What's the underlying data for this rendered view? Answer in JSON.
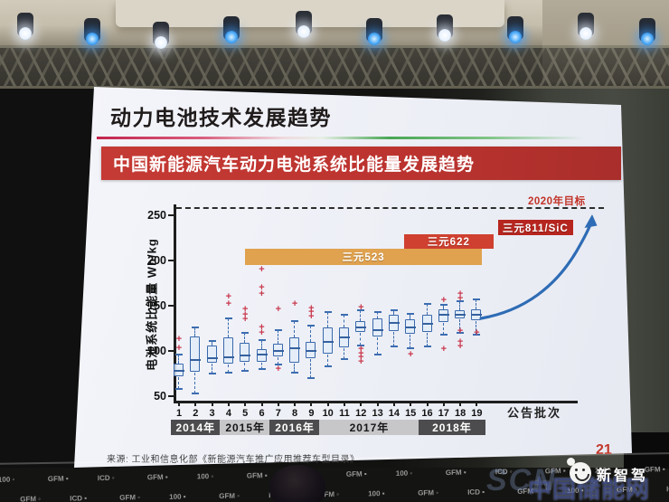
{
  "slide": {
    "title": "动力电池技术发展趋势",
    "banner": "中国新能源汽车动力电池系统比能量发展趋势",
    "source": "来源: 工业和信息化部《新能源汽车推广应用推荐车型目录》",
    "page_number": "21",
    "colors": {
      "banner_red": "#bb332f",
      "title_black": "#201b1b",
      "page_num_red": "#c2382b"
    }
  },
  "chart_data": {
    "type": "boxplot",
    "title": "中国新能源汽车动力电池系统比能量发展趋势",
    "xlabel": "公告批次",
    "ylabel": "电池系统比能量 Wh/kg",
    "ylim": [
      40,
      270
    ],
    "yticks": [
      50,
      100,
      150,
      200,
      250
    ],
    "grid": false,
    "target_line": {
      "value": 259,
      "label": "2020年目标",
      "label_color": "#c23327",
      "style": "dashed"
    },
    "box_color": "#3a69ac",
    "outlier_color": "#c93a4e",
    "batches": [
      {
        "batch": 1,
        "low": 58,
        "q1": 71,
        "median": 78,
        "q3": 86,
        "high": 96,
        "outliers": [
          103,
          113
        ]
      },
      {
        "batch": 2,
        "low": 53,
        "q1": 76,
        "median": 90,
        "q3": 116,
        "high": 126,
        "outliers": []
      },
      {
        "batch": 3,
        "low": 75,
        "q1": 86,
        "median": 92,
        "q3": 106,
        "high": 111,
        "outliers": []
      },
      {
        "batch": 4,
        "low": 76,
        "q1": 85,
        "median": 93,
        "q3": 115,
        "high": 136,
        "outliers": [
          152,
          160
        ]
      },
      {
        "batch": 5,
        "low": 78,
        "q1": 87,
        "median": 95,
        "q3": 109,
        "high": 120,
        "outliers": [
          135,
          140,
          146
        ]
      },
      {
        "batch": 6,
        "low": 80,
        "q1": 87,
        "median": 96,
        "q3": 102,
        "high": 112,
        "outliers": [
          120,
          126,
          163,
          170,
          190
        ]
      },
      {
        "batch": 7,
        "low": 85,
        "q1": 93,
        "median": 100,
        "q3": 108,
        "high": 123,
        "outliers": [
          80,
          146
        ]
      },
      {
        "batch": 8,
        "low": 76,
        "q1": 86,
        "median": 103,
        "q3": 115,
        "high": 133,
        "outliers": [
          152
        ]
      },
      {
        "batch": 9,
        "low": 70,
        "q1": 91,
        "median": 100,
        "q3": 110,
        "high": 128,
        "outliers": [
          138,
          143,
          147
        ]
      },
      {
        "batch": 10,
        "low": 83,
        "q1": 96,
        "median": 110,
        "q3": 126,
        "high": 143,
        "outliers": []
      },
      {
        "batch": 11,
        "low": 91,
        "q1": 103,
        "median": 115,
        "q3": 126,
        "high": 140,
        "outliers": []
      },
      {
        "batch": 12,
        "low": 106,
        "q1": 120,
        "median": 126,
        "q3": 133,
        "high": 145,
        "outliers": [
          88,
          93,
          97,
          102,
          148
        ]
      },
      {
        "batch": 13,
        "low": 96,
        "q1": 115,
        "median": 123,
        "q3": 136,
        "high": 143,
        "outliers": []
      },
      {
        "batch": 14,
        "low": 105,
        "q1": 121,
        "median": 131,
        "q3": 140,
        "high": 145,
        "outliers": []
      },
      {
        "batch": 15,
        "low": 103,
        "q1": 118,
        "median": 126,
        "q3": 135,
        "high": 141,
        "outliers": [
          96
        ]
      },
      {
        "batch": 16,
        "low": 105,
        "q1": 120,
        "median": 130,
        "q3": 140,
        "high": 152,
        "outliers": []
      },
      {
        "batch": 17,
        "low": 118,
        "q1": 131,
        "median": 140,
        "q3": 146,
        "high": 151,
        "outliers": [
          102,
          156
        ]
      },
      {
        "batch": 18,
        "low": 120,
        "q1": 135,
        "median": 140,
        "q3": 145,
        "high": 155,
        "outliers": [
          105,
          110,
          122,
          158,
          163
        ]
      },
      {
        "batch": 19,
        "low": 118,
        "q1": 133,
        "median": 140,
        "q3": 146,
        "high": 157,
        "outliers": [
          120
        ]
      }
    ],
    "material_bands": [
      {
        "label": "三元523",
        "wh_kg_range": [
          195,
          213
        ],
        "batch_span": [
          5.0,
          19.3
        ],
        "color": "#e0a24e"
      },
      {
        "label": "三元622",
        "wh_kg_range": [
          213,
          229
        ],
        "batch_span": [
          14.6,
          20.0
        ],
        "color": "#cf4030"
      },
      {
        "label": "三元811/SiC",
        "wh_kg_range": [
          228,
          245
        ],
        "batch_span": [
          20.3,
          24.8
        ],
        "color": "#b6261f"
      }
    ],
    "year_groups": [
      {
        "label": "2014年",
        "batches": [
          1,
          3
        ],
        "style": "dark"
      },
      {
        "label": "2015年",
        "batches": [
          4,
          6
        ],
        "style": "light"
      },
      {
        "label": "2016年",
        "batches": [
          7,
          9
        ],
        "style": "dark"
      },
      {
        "label": "2017年",
        "batches": [
          10,
          15
        ],
        "style": "light"
      },
      {
        "label": "2018年",
        "batches": [
          16,
          19
        ],
        "style": "dark"
      }
    ],
    "trend_arrow": true
  },
  "photo": {
    "stage_lights": {
      "count": 10,
      "colors": [
        "white",
        "blue",
        "white",
        "blue",
        "white",
        "blue",
        "white",
        "blue",
        "white",
        "blue"
      ]
    },
    "logo_wall_tokens": [
      "100",
      "GFM",
      "ICD",
      "GFM"
    ],
    "press_logo_text": "新智驾",
    "watermark_back": "SCN",
    "watermark_front": "中国储能网"
  }
}
